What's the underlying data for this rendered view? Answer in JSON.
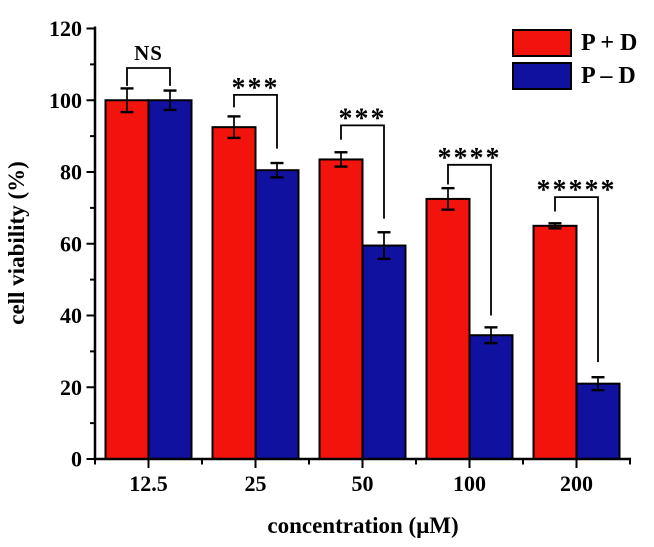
{
  "chart_data": {
    "type": "bar",
    "title": "",
    "xlabel": "concentration (μM)",
    "ylabel": "cell viability (%)",
    "categories": [
      "12.5",
      "25",
      "50",
      "100",
      "200"
    ],
    "series": [
      {
        "name": "P + D",
        "color": "#f2140c",
        "values": [
          100,
          92.5,
          83.5,
          72.5,
          65
        ],
        "errors": [
          3.3,
          3,
          2,
          3,
          0.7
        ]
      },
      {
        "name": "P – D",
        "color": "#1111a0",
        "values": [
          100,
          80.5,
          59.5,
          34.5,
          21
        ],
        "errors": [
          2.7,
          2,
          3.7,
          2.2,
          1.8
        ]
      }
    ],
    "ylim": [
      0,
      120
    ],
    "y_ticks": [
      0,
      20,
      40,
      60,
      80,
      100,
      120
    ],
    "y_minor_ticks": [
      10,
      30,
      50,
      70,
      90,
      110
    ],
    "grid": false,
    "legend_position": "top-right-inside",
    "annotations": [
      {
        "label": "NS",
        "bracket_top": 109,
        "left_leg_end": 104,
        "right_leg_end": 104
      },
      {
        "label": "***",
        "bracket_top": 101.5,
        "left_leg_end": 98,
        "right_leg_end": 86.5
      },
      {
        "label": "***",
        "bracket_top": 93,
        "left_leg_end": 89,
        "right_leg_end": 67
      },
      {
        "label": "****",
        "bracket_top": 82,
        "left_leg_end": 76.5,
        "right_leg_end": 40
      },
      {
        "label": "*****",
        "bracket_top": 73,
        "left_leg_end": 69,
        "right_leg_end": 27
      }
    ],
    "axis_color": "#000000",
    "background": "#ffffff"
  }
}
